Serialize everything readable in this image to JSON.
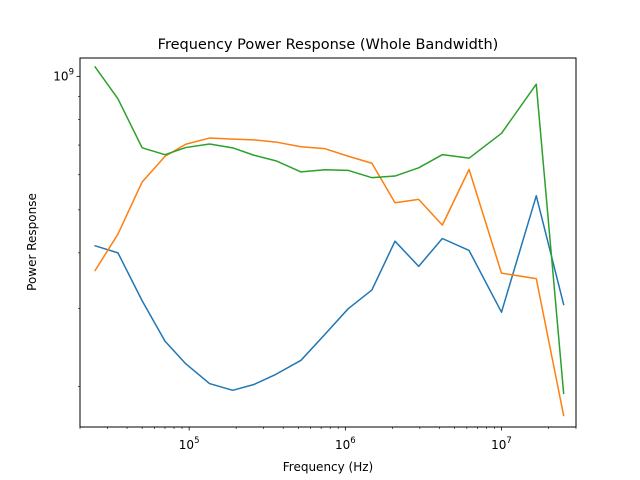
{
  "chart_data": {
    "type": "line",
    "title": "Frequency Power Response (Whole Bandwidth)",
    "xlabel": "Frequency (Hz)",
    "ylabel": "Power Response",
    "xscale": "log",
    "yscale": "log",
    "xlim": [
      20000,
      30000000
    ],
    "ylim": [
      162000000,
      1100000000
    ],
    "x_ticks": [
      {
        "value": 100000,
        "base": "10",
        "exp": "5"
      },
      {
        "value": 1000000,
        "base": "10",
        "exp": "6"
      },
      {
        "value": 10000000,
        "base": "10",
        "exp": "7"
      }
    ],
    "y_ticks": [
      {
        "value": 1000000000,
        "base": "10",
        "exp": "9"
      }
    ],
    "grid": false,
    "legend": "none",
    "x": [
      25000,
      35000,
      50000,
      70000,
      95000,
      135000,
      190000,
      260000,
      360000,
      520000,
      740000,
      1040000,
      1480000,
      2080000,
      2950000,
      4180000,
      6200000,
      10000000,
      16700000,
      25000000
    ],
    "series": [
      {
        "color": "#1f77b4",
        "values": [
          415000000,
          400000000,
          312000000,
          253000000,
          225000000,
          203000000,
          196000000,
          202000000,
          213000000,
          229000000,
          262000000,
          299000000,
          330000000,
          425000000,
          373000000,
          431000000,
          405000000,
          294000000,
          538000000,
          306000000
        ]
      },
      {
        "color": "#ff7f0e",
        "values": [
          365000000,
          441000000,
          578000000,
          660000000,
          703000000,
          726000000,
          722000000,
          719000000,
          711000000,
          694000000,
          687000000,
          661000000,
          637000000,
          519000000,
          528000000,
          462000000,
          617000000,
          360000000,
          350000000,
          172000000
        ]
      },
      {
        "color": "#2ca02c",
        "values": [
          1050000000,
          890000000,
          690000000,
          666000000,
          691000000,
          704000000,
          690000000,
          664000000,
          645000000,
          609000000,
          616000000,
          614000000,
          591000000,
          596000000,
          622000000,
          666000000,
          654000000,
          744000000,
          960000000,
          193000000
        ]
      }
    ]
  }
}
